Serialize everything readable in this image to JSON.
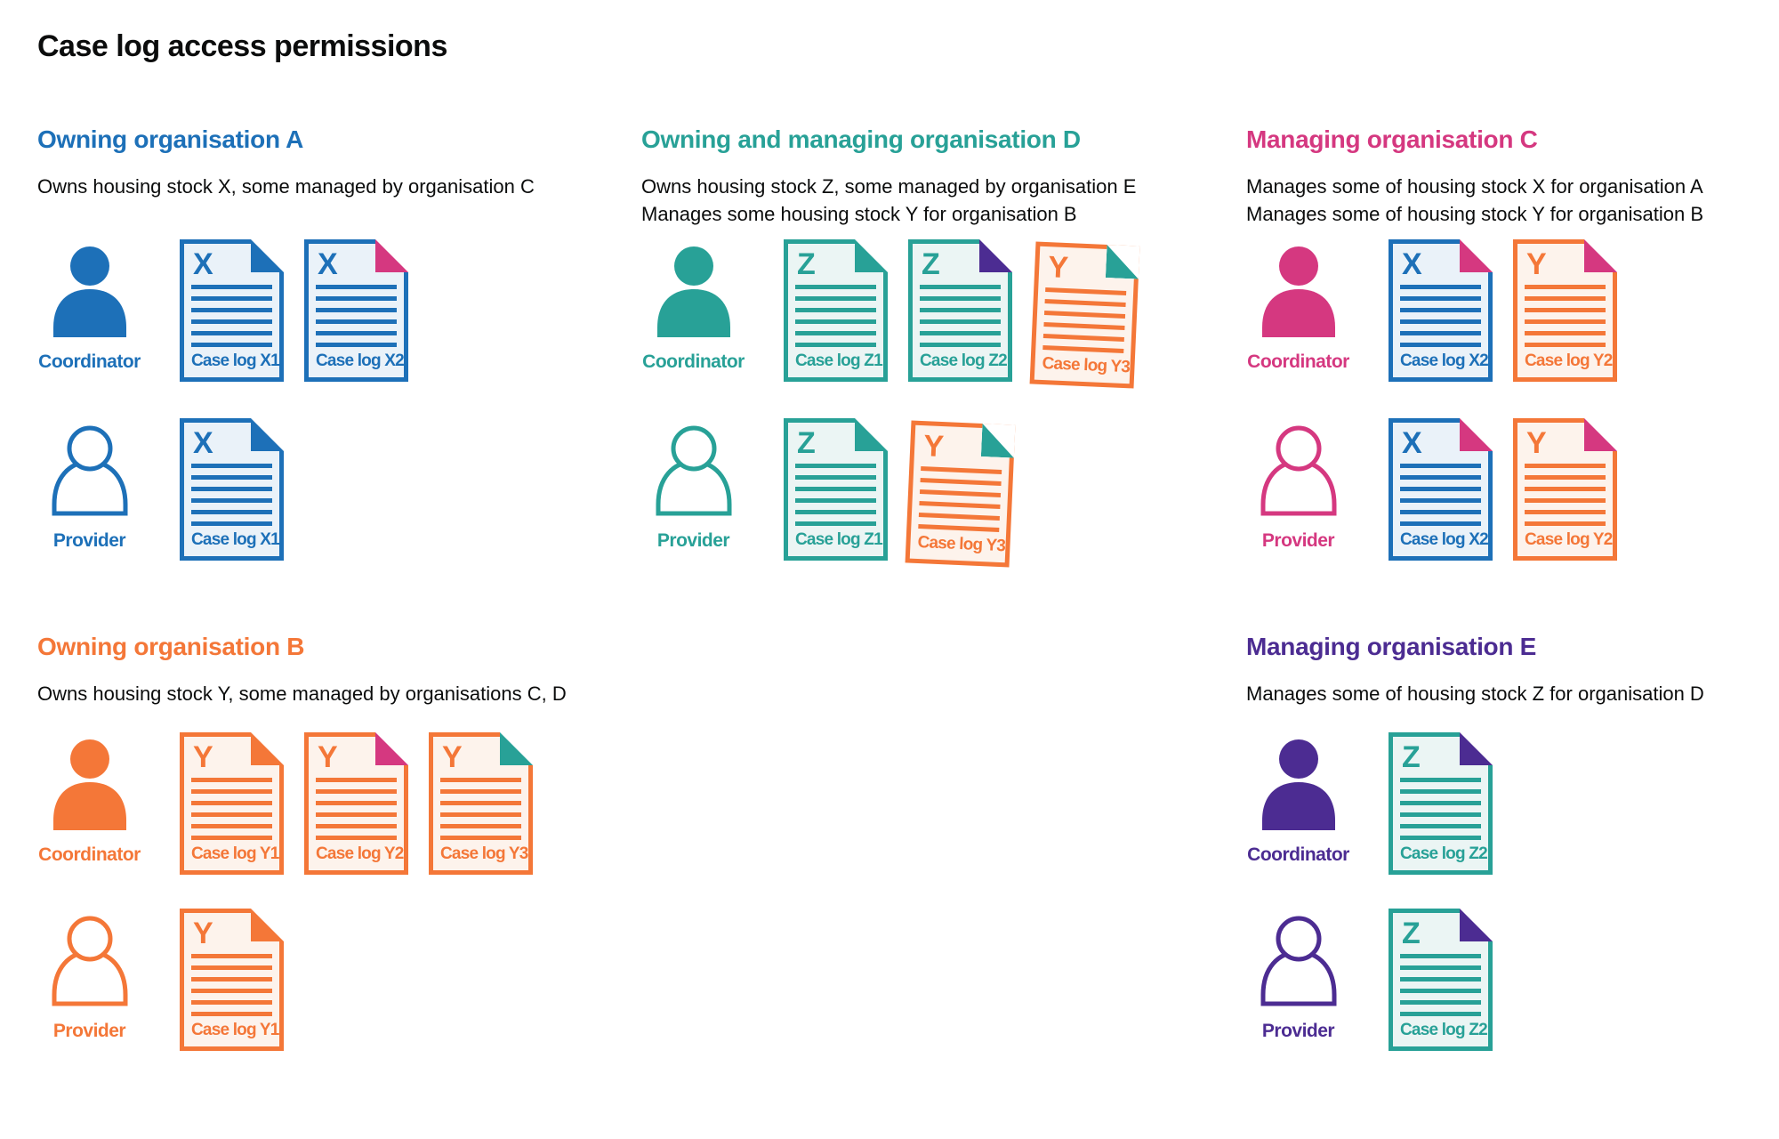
{
  "page": {
    "title": "Case log access permissions"
  },
  "palette": {
    "blue": {
      "main": "#1d70b8",
      "fill": "#eaf2f9"
    },
    "teal": {
      "main": "#28a197",
      "fill": "#ebf5f4"
    },
    "orange": {
      "main": "#f47738",
      "fill": "#fdf3ec"
    },
    "pink": {
      "main": "#d53880",
      "fill": "#fbebf2"
    },
    "purple": {
      "main": "#4c2c92",
      "fill": "#ede9f4"
    },
    "text": "#0b0c0c"
  },
  "sections": [
    {
      "id": "owning-organisation-a",
      "title": "Owning organisation A",
      "color": "blue",
      "column": "left",
      "band": "top",
      "description_lines": [
        "Owns housing stock X, some managed by organisation C"
      ],
      "rows": [
        {
          "role": "Coordinator",
          "person_style": "filled",
          "docs": [
            {
              "label": "Case log X1",
              "letter": "X",
              "theme": "blue",
              "fold": "blue",
              "tilt": false
            },
            {
              "label": "Case log X2",
              "letter": "X",
              "theme": "blue",
              "fold": "pink",
              "tilt": false
            }
          ]
        },
        {
          "role": "Provider",
          "person_style": "outline",
          "docs": [
            {
              "label": "Case log X1",
              "letter": "X",
              "theme": "blue",
              "fold": "blue",
              "tilt": false
            }
          ]
        }
      ]
    },
    {
      "id": "owning-and-managing-organisation-d",
      "title": "Owning and managing organisation D",
      "color": "teal",
      "column": "middle",
      "band": "top",
      "description_lines": [
        "Owns housing stock Z, some managed by organisation E",
        "Manages some housing stock Y for organisation B"
      ],
      "rows": [
        {
          "role": "Coordinator",
          "person_style": "filled",
          "docs": [
            {
              "label": "Case log Z1",
              "letter": "Z",
              "theme": "teal",
              "fold": "teal",
              "tilt": false
            },
            {
              "label": "Case log Z2",
              "letter": "Z",
              "theme": "teal",
              "fold": "purple",
              "tilt": false
            },
            {
              "label": "Case log Y3",
              "letter": "Y",
              "theme": "orange",
              "fold": "teal",
              "tilt": true
            }
          ]
        },
        {
          "role": "Provider",
          "person_style": "outline",
          "docs": [
            {
              "label": "Case log Z1",
              "letter": "Z",
              "theme": "teal",
              "fold": "teal",
              "tilt": false
            },
            {
              "label": "Case log Y3",
              "letter": "Y",
              "theme": "orange",
              "fold": "teal",
              "tilt": true
            }
          ]
        }
      ]
    },
    {
      "id": "managing-organisation-c",
      "title": "Managing organisation C",
      "color": "pink",
      "column": "right",
      "band": "top",
      "description_lines": [
        "Manages some of housing stock X for organisation A",
        "Manages some of housing stock Y for organisation B"
      ],
      "rows": [
        {
          "role": "Coordinator",
          "person_style": "filled",
          "docs": [
            {
              "label": "Case log X2",
              "letter": "X",
              "theme": "blue",
              "fold": "pink",
              "tilt": false
            },
            {
              "label": "Case log Y2",
              "letter": "Y",
              "theme": "orange",
              "fold": "pink",
              "tilt": false
            }
          ]
        },
        {
          "role": "Provider",
          "person_style": "outline",
          "docs": [
            {
              "label": "Case log X2",
              "letter": "X",
              "theme": "blue",
              "fold": "pink",
              "tilt": false
            },
            {
              "label": "Case log Y2",
              "letter": "Y",
              "theme": "orange",
              "fold": "pink",
              "tilt": false
            }
          ]
        }
      ]
    },
    {
      "id": "owning-organisation-b",
      "title": "Owning organisation B",
      "color": "orange",
      "column": "left",
      "band": "bottom",
      "description_lines": [
        "Owns housing stock Y, some managed by organisations C, D"
      ],
      "rows": [
        {
          "role": "Coordinator",
          "person_style": "filled",
          "docs": [
            {
              "label": "Case log Y1",
              "letter": "Y",
              "theme": "orange",
              "fold": "orange",
              "tilt": false
            },
            {
              "label": "Case log Y2",
              "letter": "Y",
              "theme": "orange",
              "fold": "pink",
              "tilt": false
            },
            {
              "label": "Case log Y3",
              "letter": "Y",
              "theme": "orange",
              "fold": "teal",
              "tilt": false
            }
          ]
        },
        {
          "role": "Provider",
          "person_style": "outline",
          "docs": [
            {
              "label": "Case log Y1",
              "letter": "Y",
              "theme": "orange",
              "fold": "orange",
              "tilt": false
            }
          ]
        }
      ]
    },
    {
      "id": "managing-organisation-e",
      "title": "Managing organisation E",
      "color": "purple",
      "column": "right",
      "band": "bottom",
      "description_lines": [
        "Manages some of housing stock Z for organisation D"
      ],
      "rows": [
        {
          "role": "Coordinator",
          "person_style": "filled",
          "docs": [
            {
              "label": "Case log Z2",
              "letter": "Z",
              "theme": "teal",
              "fold": "purple",
              "tilt": false
            }
          ]
        },
        {
          "role": "Provider",
          "person_style": "outline",
          "docs": [
            {
              "label": "Case log Z2",
              "letter": "Z",
              "theme": "teal",
              "fold": "purple",
              "tilt": false
            }
          ]
        }
      ]
    }
  ]
}
